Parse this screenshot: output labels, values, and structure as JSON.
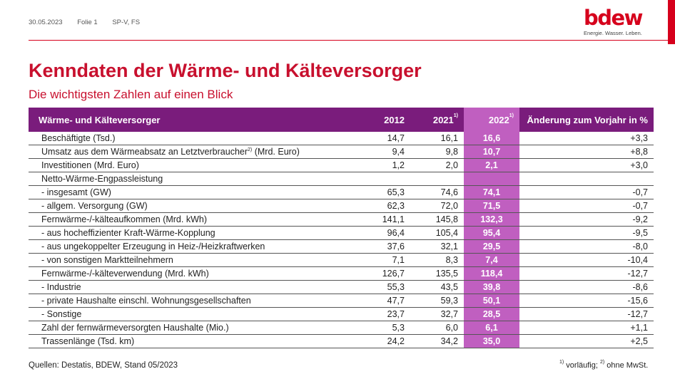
{
  "meta": {
    "date": "30.05.2023",
    "slide": "Folie 1",
    "author": "SP-V, FS"
  },
  "logo": {
    "word": "bdew",
    "tagline": "Energie. Wasser. Leben."
  },
  "colors": {
    "brand_red": "#d6001c",
    "header_purple": "#7a1c7c",
    "highlight": "#c05fc0"
  },
  "title": "Kenndaten der Wärme- und Kälteversorger",
  "subtitle": "Die wichtigsten Zahlen auf einen Blick",
  "table": {
    "headers": [
      "Wärme- und Kälteversorger",
      "2012",
      "2021",
      "2022",
      "Änderung zum Vorjahr in %"
    ],
    "header_sups": [
      "",
      "",
      "1)",
      "1)",
      ""
    ],
    "rows": [
      {
        "label": "Beschäftigte (Tsd.)",
        "sup": "",
        "v2012": "14,7",
        "v2021": "16,1",
        "v2022": "16,6",
        "change": "+3,3"
      },
      {
        "label": "Umsatz aus dem Wärmeabsatz an Letztverbraucher",
        "sup": "2)",
        "suffix": " (Mrd. Euro)",
        "v2012": "9,4",
        "v2021": "9,8",
        "v2022": "10,7",
        "change": "+8,8"
      },
      {
        "label": "Investitionen (Mrd. Euro)",
        "sup": "",
        "v2012": "1,2",
        "v2021": "2,0",
        "v2022": "2,1",
        "change": "+3,0"
      },
      {
        "label": "Netto-Wärme-Engpassleistung",
        "sup": "",
        "v2012": "",
        "v2021": "",
        "v2022": "",
        "change": ""
      },
      {
        "label": "- insgesamt (GW)",
        "sup": "",
        "v2012": "65,3",
        "v2021": "74,6",
        "v2022": "74,1",
        "change": "-0,7"
      },
      {
        "label": "- allgem. Versorgung (GW)",
        "sup": "",
        "v2012": "62,3",
        "v2021": "72,0",
        "v2022": "71,5",
        "change": "-0,7"
      },
      {
        "label": "Fernwärme-/-kälteaufkommen (Mrd. kWh)",
        "sup": "",
        "v2012": "141,1",
        "v2021": "145,8",
        "v2022": "132,3",
        "change": "-9,2"
      },
      {
        "label": "- aus hocheffizienter Kraft-Wärme-Kopplung",
        "sup": "",
        "v2012": "96,4",
        "v2021": "105,4",
        "v2022": "95,4",
        "change": "-9,5"
      },
      {
        "label": "- aus ungekoppelter Erzeugung in Heiz-/Heizkraftwerken",
        "sup": "",
        "v2012": "37,6",
        "v2021": "32,1",
        "v2022": "29,5",
        "change": "-8,0"
      },
      {
        "label": "- von sonstigen Marktteilnehmern",
        "sup": "",
        "v2012": "7,1",
        "v2021": "8,3",
        "v2022": "7,4",
        "change": "-10,4"
      },
      {
        "label": "Fernwärme-/-kälteverwendung (Mrd. kWh)",
        "sup": "",
        "v2012": "126,7",
        "v2021": "135,5",
        "v2022": "118,4",
        "change": "-12,7"
      },
      {
        "label": "- Industrie",
        "sup": "",
        "v2012": "55,3",
        "v2021": "43,5",
        "v2022": "39,8",
        "change": "-8,6"
      },
      {
        "label": "- private Haushalte einschl. Wohnungsgesellschaften",
        "sup": "",
        "v2012": "47,7",
        "v2021": "59,3",
        "v2022": "50,1",
        "change": "-15,6"
      },
      {
        "label": "- Sonstige",
        "sup": "",
        "v2012": "23,7",
        "v2021": "32,7",
        "v2022": "28,5",
        "change": "-12,7"
      },
      {
        "label": "Zahl der fernwärmeversorgten Haushalte (Mio.)",
        "sup": "",
        "v2012": "5,3",
        "v2021": "6,0",
        "v2022": "6,1",
        "change": "+1,1"
      },
      {
        "label": "Trassenlänge (Tsd. km)",
        "sup": "",
        "v2012": "24,2",
        "v2021": "34,2",
        "v2022": "35,0",
        "change": "+2,5"
      }
    ]
  },
  "source": "Quellen: Destatis, BDEW, Stand 05/2023",
  "footnote": {
    "sup1": "1)",
    "text1": " vorläufig; ",
    "sup2": "2)",
    "text2": " ohne MwSt."
  }
}
